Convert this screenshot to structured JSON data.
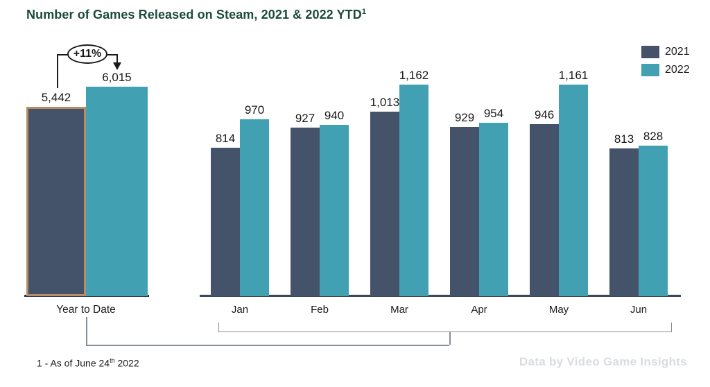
{
  "header": {
    "title": "Number of Games Released on Steam, 2021 & 2022 YTD",
    "title_superscript": "1",
    "title_color": "#1B4A3E"
  },
  "legend": {
    "items": [
      {
        "label": "2021",
        "color": "#44526A"
      },
      {
        "label": "2022",
        "color": "#41A1B3"
      }
    ]
  },
  "annotation": {
    "label": "+11%"
  },
  "footnote": {
    "text_before": "1 - As of June 24",
    "superscript": "th",
    "text_after": " 2022"
  },
  "watermark": {
    "text": "Data by Video Game Insights",
    "color": "#D9DDE1"
  },
  "chart_data": {
    "type": "bar",
    "title": "Number of Games Released on Steam, 2021 & 2022 YTD",
    "legend_position": "top-right",
    "grid": false,
    "colors": {
      "2021": "#44526A",
      "2022": "#41A1B3"
    },
    "highlight": {
      "section": "year_to_date",
      "series": "2021",
      "category": "Year to Date",
      "border_color": "#B78D66",
      "note": "+11%"
    },
    "sections": [
      {
        "id": "year_to_date",
        "categories": [
          "Year to Date"
        ],
        "series": [
          {
            "name": "2021",
            "values": [
              5442
            ],
            "value_labels": [
              "5,442"
            ]
          },
          {
            "name": "2022",
            "values": [
              6015
            ],
            "value_labels": [
              "6,015"
            ]
          }
        ],
        "annotation": {
          "label": "+11%",
          "from_series": "2021",
          "to_series": "2022"
        }
      },
      {
        "id": "monthly",
        "categories": [
          "Jan",
          "Feb",
          "Mar",
          "Apr",
          "May",
          "Jun"
        ],
        "series": [
          {
            "name": "2021",
            "values": [
              814,
              927,
              1013,
              929,
              946,
              813
            ],
            "value_labels": [
              "814",
              "927",
              "1,013",
              "929",
              "946",
              "813"
            ]
          },
          {
            "name": "2022",
            "values": [
              970,
              940,
              1162,
              954,
              1161,
              828
            ],
            "value_labels": [
              "970",
              "940",
              "1,162",
              "954",
              "1,161",
              "828"
            ]
          }
        ]
      }
    ]
  }
}
